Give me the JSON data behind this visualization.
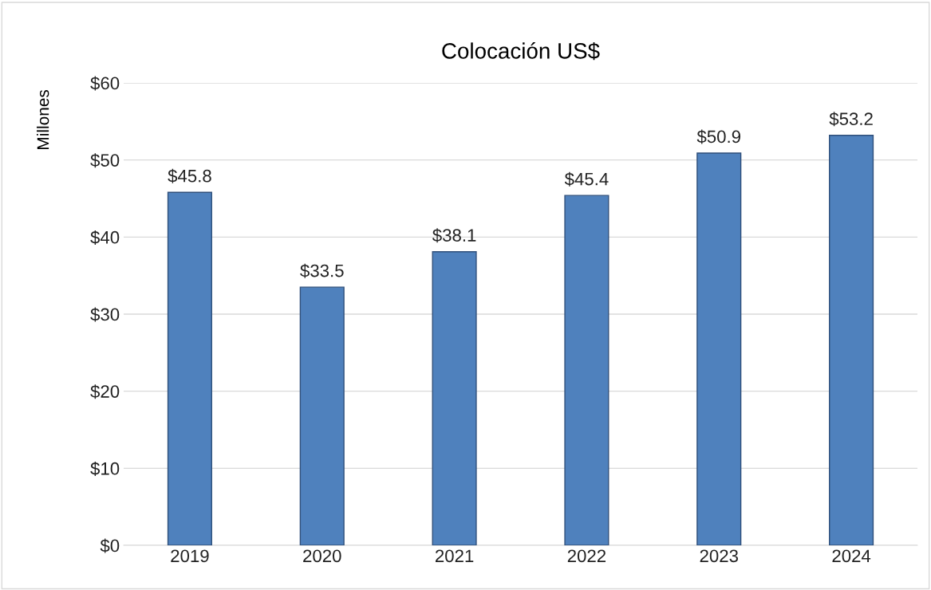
{
  "chart_data": {
    "type": "bar",
    "title": "Colocación US$",
    "ylabel": "Millones",
    "categories": [
      "2019",
      "2020",
      "2021",
      "2022",
      "2023",
      "2024"
    ],
    "values": [
      45.8,
      33.5,
      38.1,
      45.4,
      50.9,
      53.2
    ],
    "value_labels": [
      "$45.8",
      "$33.5",
      "$38.1",
      "$45.4",
      "$50.9",
      "$53.2"
    ],
    "color": "#4f81bd",
    "ylim": [
      0,
      60
    ],
    "yticks": [
      {
        "value": 0,
        "label": "$0"
      },
      {
        "value": 10,
        "label": "$10"
      },
      {
        "value": 20,
        "label": "$20"
      },
      {
        "value": 30,
        "label": "$30"
      },
      {
        "value": 40,
        "label": "$40"
      },
      {
        "value": 50,
        "label": "$50"
      },
      {
        "value": 60,
        "label": "$60"
      }
    ],
    "grid": "y",
    "legend": false
  }
}
